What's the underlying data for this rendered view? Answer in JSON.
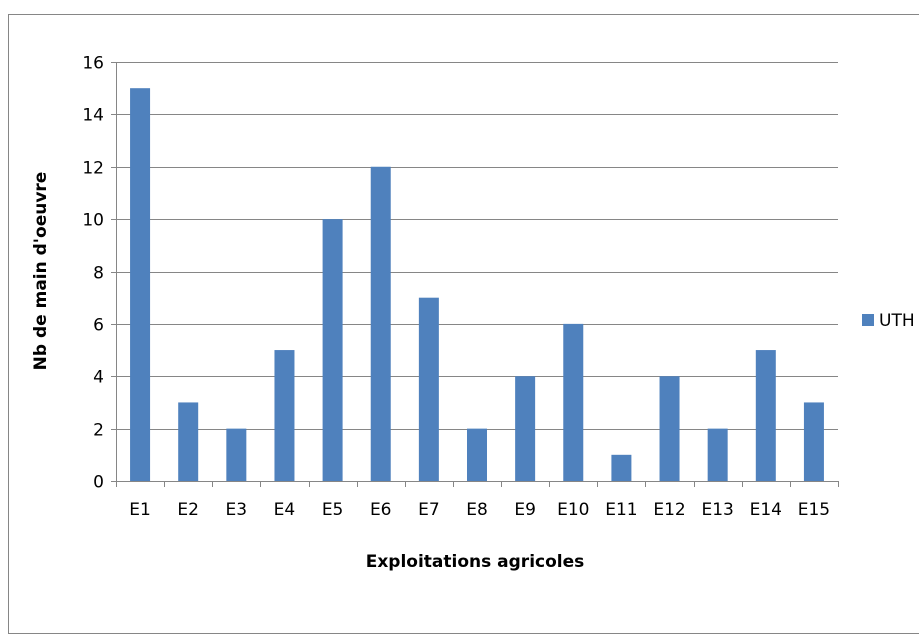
{
  "chart_data": {
    "type": "bar",
    "categories": [
      "E1",
      "E2",
      "E3",
      "E4",
      "E5",
      "E6",
      "E7",
      "E8",
      "E9",
      "E10",
      "E11",
      "E12",
      "E13",
      "E14",
      "E15"
    ],
    "series": [
      {
        "name": "UTH",
        "values": [
          15,
          3,
          2,
          5,
          10,
          12,
          7,
          2,
          4,
          6,
          1,
          4,
          2,
          5,
          3
        ]
      }
    ],
    "xlabel": "Exploitations agricoles",
    "ylabel": "Nb de  main d'oeuvre",
    "ylim": [
      0,
      16
    ],
    "yticks": [
      0,
      2,
      4,
      6,
      8,
      10,
      12,
      14,
      16
    ],
    "grid": true,
    "legend_position": "right",
    "colors": {
      "bar": "#4F81BD",
      "grid": "#868686",
      "axis": "#868686",
      "frame": "#868686"
    }
  }
}
